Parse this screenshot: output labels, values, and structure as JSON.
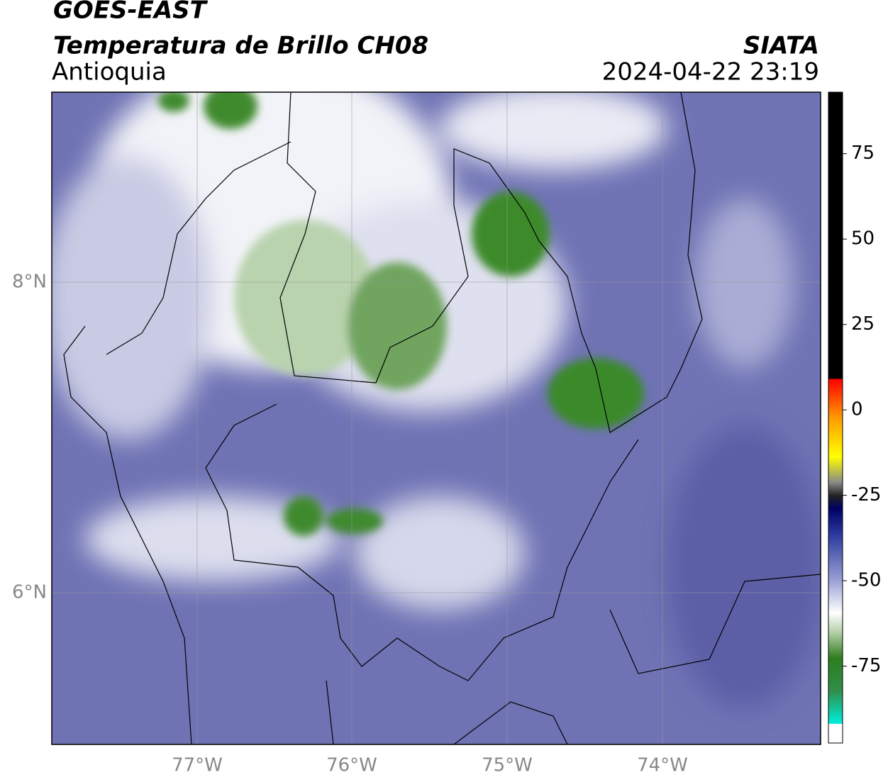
{
  "header": {
    "title": "GOES-EAST",
    "subtitle": "Temperatura de Brillo CH08",
    "region": "Antioquia",
    "source": "SIATA",
    "timestamp": "2024-04-22 23:19"
  },
  "map": {
    "lat_labels": [
      "8°N",
      "6°N"
    ],
    "lon_labels": [
      "77°W",
      "76°W",
      "75°W",
      "74°W"
    ]
  },
  "colorbar": {
    "lim": [
      -97.5,
      93
    ],
    "ticks": [
      75,
      50,
      25,
      0,
      -25,
      -50,
      -75
    ]
  }
}
